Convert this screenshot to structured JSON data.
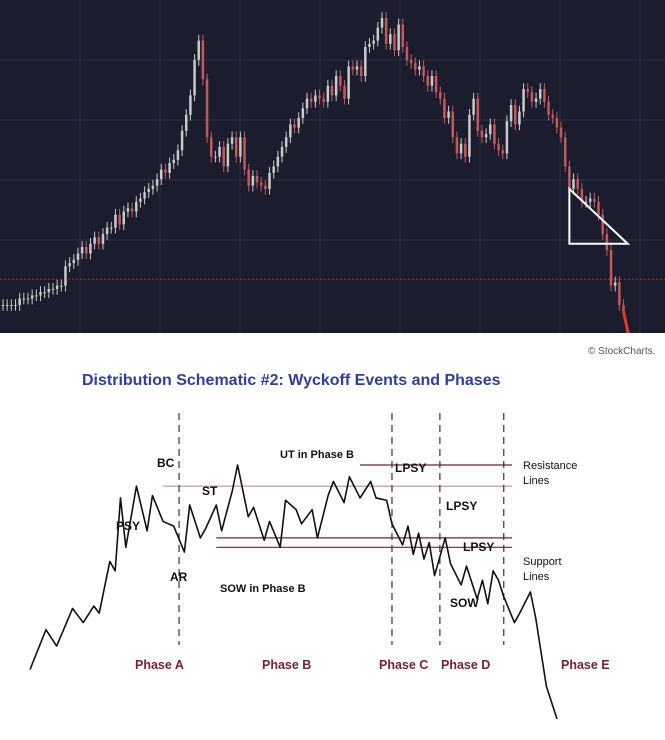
{
  "top_panel": {
    "colors": {
      "background": "#1b1d2e",
      "candle_up": "#c9c9c9",
      "candle_down": "#c25a5a",
      "level_line": "#8a3a3a",
      "triangle": "#ffffff",
      "projection": "#e03a2a"
    },
    "chart_data": {
      "type": "candlestick",
      "title": "",
      "x_label": "",
      "y_label": "",
      "grid": true,
      "note": "no axis tick labels printed; values in relative price units 0-100",
      "series": [
        {
          "label": "",
          "style": "candles",
          "x": [
            0,
            1,
            2,
            3,
            4,
            5,
            6,
            7,
            8,
            9,
            10,
            11,
            12,
            13,
            14,
            15,
            16,
            17,
            18,
            19,
            20,
            21,
            22,
            23,
            24,
            25,
            26,
            27,
            28,
            29,
            30,
            31,
            32,
            33,
            34,
            35,
            36,
            37,
            38,
            39,
            40,
            41,
            42,
            43,
            44,
            45,
            46,
            47,
            48,
            49,
            50,
            51,
            52,
            53,
            54,
            55,
            56,
            57,
            58,
            59,
            60,
            61,
            62,
            63,
            64,
            65,
            66,
            67,
            68,
            69,
            70,
            71,
            72,
            73,
            74,
            75,
            76,
            77,
            78,
            79,
            80,
            81,
            82,
            83,
            84,
            85,
            86,
            87,
            88,
            89,
            90,
            91,
            92,
            93,
            94,
            95,
            96,
            97,
            98,
            99,
            100,
            101,
            102,
            103,
            104,
            105,
            106,
            107,
            108,
            109,
            110,
            111,
            112,
            113,
            114,
            115,
            116,
            117,
            118,
            119,
            120,
            121,
            122,
            123,
            124,
            125,
            126,
            127,
            128,
            129,
            130,
            131,
            132,
            133,
            134,
            135,
            136,
            137,
            138,
            139,
            140,
            141,
            142,
            143,
            144,
            145,
            146,
            147,
            148,
            149
          ],
          "y": [
            8,
            8,
            8,
            8,
            10,
            10,
            10,
            11,
            11,
            12,
            12,
            13,
            13,
            14,
            14,
            20,
            21,
            22,
            24,
            26,
            24,
            27,
            29,
            27,
            30,
            32,
            32,
            36,
            33,
            37,
            38,
            37,
            40,
            41,
            43,
            44,
            45,
            47,
            50,
            49,
            52,
            53,
            56,
            62,
            67,
            73,
            84,
            90,
            78,
            60,
            54,
            54,
            57,
            51,
            58,
            60,
            54,
            60,
            50,
            45,
            48,
            46,
            45,
            44,
            49,
            51,
            54,
            57,
            60,
            64,
            63,
            66,
            69,
            72,
            71,
            73,
            72,
            71,
            76,
            73,
            79,
            76,
            72,
            82,
            81,
            82,
            79,
            88,
            89,
            90,
            94,
            97,
            89,
            92,
            87,
            95,
            88,
            84,
            83,
            81,
            82,
            79,
            76,
            79,
            74,
            72,
            66,
            68,
            60,
            55,
            58,
            54,
            67,
            72,
            62,
            60,
            61,
            64,
            58,
            56,
            55,
            65,
            70,
            64,
            68,
            75,
            74,
            71,
            72,
            75,
            71,
            67,
            66,
            63,
            60,
            51,
            44,
            47,
            44,
            40,
            40,
            41,
            40,
            36,
            30,
            25,
            14,
            15,
            8,
            6
          ]
        },
        {
          "label": "",
          "style": "projection",
          "x": [
            149,
            150,
            151,
            152,
            153,
            154,
            155,
            156,
            157,
            158
          ],
          "y": [
            6,
            0,
            -6,
            -10,
            -14,
            -10,
            -6,
            -10,
            -18,
            -26
          ]
        }
      ],
      "annotations": {
        "triangle_pattern": {
          "x_range": [
            136,
            150
          ],
          "upper_y": [
            44,
            27
          ],
          "lower_y": [
            27,
            27
          ]
        },
        "horizontal_level_y": 16
      }
    }
  },
  "bottom_panel": {
    "watermark": "© StockCharts.",
    "title": "Distribution Schematic #2: Wyckoff Events and Phases",
    "colors": {
      "title": "#2e3ea0",
      "price_line": "#111111",
      "resistance_line": "#7a1e2e",
      "phase_label": "#7a1e2e",
      "divider": "#333333"
    },
    "event_labels": {
      "psy": "PSY",
      "bc": "BC",
      "st": "ST",
      "ar": "AR",
      "ut_in_phase_b": "UT in Phase B",
      "sow_in_phase_b": "SOW in Phase B",
      "lpsy_c": "LPSY",
      "lpsy_d1": "LPSY",
      "lpsy_d2": "LPSY",
      "sow": "SOW"
    },
    "line_labels": {
      "resistance_1": "Resistance",
      "resistance_2": "Lines",
      "support_1": "Support",
      "support_2": "Lines"
    },
    "phases": [
      "Phase A",
      "Phase B",
      "Phase C",
      "Phase D",
      "Phase E"
    ],
    "chart_data": {
      "type": "line",
      "title": "Distribution Schematic #2: Wyckoff Events and Phases",
      "x_label": "",
      "y_label": "",
      "note": "schematic — no axis scale printed; values in relative units 0-100",
      "series": [
        {
          "label": "",
          "x": [
            0,
            3,
            5,
            8,
            10,
            12,
            13,
            15,
            16,
            17,
            18,
            20,
            22,
            23,
            25,
            27,
            29,
            30,
            32,
            33,
            35,
            36,
            38,
            39,
            41,
            42,
            44,
            45,
            47,
            48,
            50,
            51,
            53,
            54,
            56,
            57,
            59,
            60,
            62,
            64,
            65,
            67,
            68,
            70,
            71,
            72,
            73,
            74,
            75,
            76,
            78,
            79,
            81,
            82,
            84,
            85,
            86,
            87,
            88,
            89,
            91,
            92,
            94,
            95,
            97,
            99
          ],
          "y": [
            0,
            17,
            10,
            26,
            20,
            27,
            24,
            46,
            42,
            73,
            52,
            78,
            59,
            74,
            63,
            61,
            50,
            70,
            56,
            60,
            70,
            59,
            76,
            87,
            65,
            69,
            55,
            63,
            52,
            72,
            68,
            62,
            68,
            56,
            74,
            80,
            71,
            82,
            73,
            80,
            73,
            72,
            62,
            53,
            61,
            49,
            58,
            47,
            54,
            40,
            56,
            45,
            36,
            44,
            30,
            38,
            28,
            42,
            38,
            31,
            20,
            24,
            33,
            22,
            -7,
            -21
          ]
        }
      ],
      "phase_boundaries_x": [
        28,
        68,
        77,
        89
      ],
      "resistance_levels": [
        87,
        78
      ],
      "support_levels": [
        56,
        52
      ]
    }
  }
}
